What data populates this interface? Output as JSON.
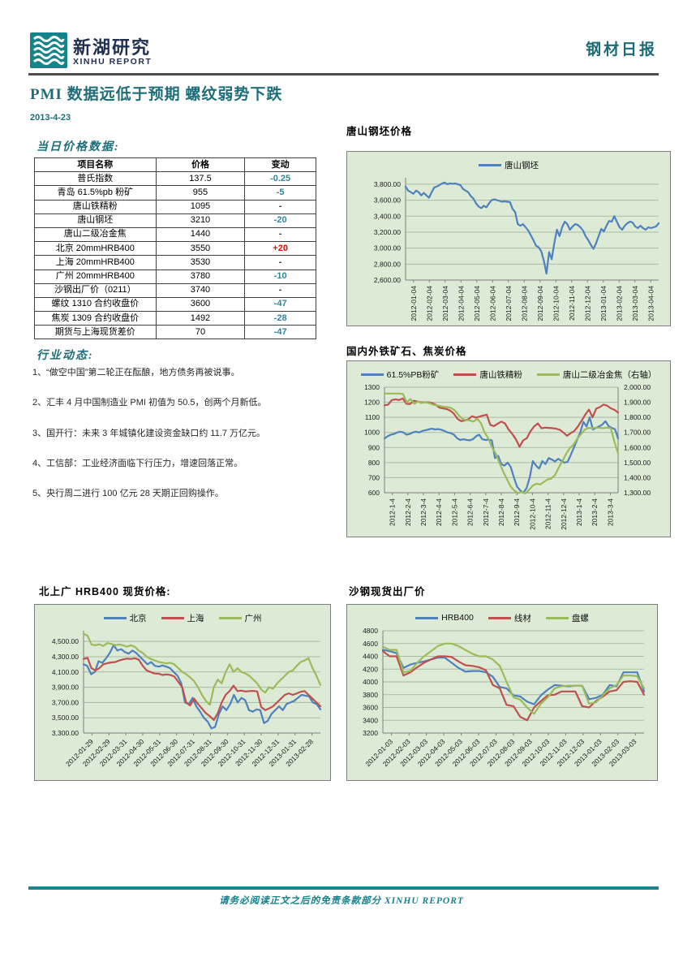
{
  "header": {
    "logo_cn": "新湖研究",
    "logo_en": "XINHU REPORT",
    "report_type": "钢材日报"
  },
  "title": "PMI 数据远低于预期 螺纹弱势下跌",
  "date": "2013-4-23",
  "colors": {
    "teal_heading": "#1D6E79",
    "footer_teal": "#1A858C",
    "header_rule": "#4D4D4D",
    "table_down": "#31849B",
    "table_up": "#FF0000",
    "series_blue": "#4F81BD",
    "series_red": "#C0504D",
    "series_green": "#9BBB59",
    "chart_bg": "#DCEAD6",
    "chart_border": "#7F7F7F",
    "gridline": "#A9BAA3"
  },
  "price_table": {
    "heading": "当日价格数据:",
    "columns": [
      "项目名称",
      "价格",
      "变动"
    ],
    "rows": [
      {
        "name": "普氏指数",
        "price": "137.5",
        "change": "-0.25",
        "dir": "down"
      },
      {
        "name": "青岛 61.5%pb 粉矿",
        "price": "955",
        "change": "-5",
        "dir": "down"
      },
      {
        "name": "唐山铁精粉",
        "price": "1095",
        "change": "-",
        "dir": "flat"
      },
      {
        "name": "唐山钢坯",
        "price": "3210",
        "change": "-20",
        "dir": "down"
      },
      {
        "name": "唐山二级冶金焦",
        "price": "1440",
        "change": "-",
        "dir": "flat"
      },
      {
        "name": "北京 20mmHRB400",
        "price": "3550",
        "change": "+20",
        "dir": "up"
      },
      {
        "name": "上海 20mmHRB400",
        "price": "3530",
        "change": "-",
        "dir": "flat"
      },
      {
        "name": "广州 20mmHRB400",
        "price": "3780",
        "change": "-10",
        "dir": "down"
      },
      {
        "name": "沙钢出厂价（0211）",
        "price": "3740",
        "change": "-",
        "dir": "flat"
      },
      {
        "name": "螺纹 1310 合约收盘价",
        "price": "3600",
        "change": "-47",
        "dir": "down"
      },
      {
        "name": "焦炭 1309 合约收盘价",
        "price": "1492",
        "change": "-28",
        "dir": "down"
      },
      {
        "name": "期货与上海现货差价",
        "price": "70",
        "change": "-47",
        "dir": "down"
      }
    ]
  },
  "news": {
    "heading": "行业动态:",
    "items": [
      "1、“做空中国”第二轮正在酝酿，地方债务再被说事。",
      "2、汇丰 4 月中国制造业 PMI 初值为 50.5，创两个月新低。",
      "3、国开行：未来 3 年城镇化建设资金缺口约 11.7 万亿元。",
      "4、工信部：工业经济面临下行压力，增速回落正常。",
      "5、央行周二进行 100 亿元 28 天期正回购操作。"
    ]
  },
  "footer": {
    "disclaimer": "请务必阅读正文之后的免责条款部分 XINHU REPORT"
  },
  "chart_data": [
    {
      "type": "line",
      "title": "唐山钢坯价格",
      "legend_position": "top",
      "ylim": [
        2600,
        3880
      ],
      "ystep": 200,
      "grid_top": 3800,
      "yfmt": "dec2",
      "xrot": 90,
      "xlabels": [
        "2012-01-04",
        "2012-02-04",
        "2012-03-04",
        "2012-04-04",
        "2012-05-04",
        "2012-06-04",
        "2012-07-04",
        "2012-08-04",
        "2012-09-04",
        "2012-10-04",
        "2012-11-04",
        "2012-12-04",
        "2013-01-04",
        "2013-02-04",
        "2013-03-04",
        "2013-04-04"
      ],
      "series": [
        {
          "name": "唐山钢坯",
          "color": "blue",
          "axis": "left",
          "values": [
            3770,
            3720,
            3700,
            3680,
            3720,
            3700,
            3660,
            3690,
            3660,
            3630,
            3700,
            3760,
            3770,
            3790,
            3810,
            3820,
            3800,
            3810,
            3805,
            3810,
            3800,
            3790,
            3740,
            3720,
            3700,
            3650,
            3620,
            3560,
            3520,
            3500,
            3530,
            3510,
            3560,
            3600,
            3610,
            3600,
            3590,
            3580,
            3585,
            3580,
            3575,
            3490,
            3450,
            3300,
            3280,
            3300,
            3260,
            3220,
            3160,
            3100,
            3030,
            3010,
            2960,
            2840,
            2680,
            2950,
            2860,
            3060,
            3230,
            3150,
            3260,
            3330,
            3300,
            3230,
            3270,
            3300,
            3290,
            3260,
            3220,
            3150,
            3100,
            3040,
            2990,
            3060,
            3150,
            3240,
            3210,
            3280,
            3340,
            3330,
            3400,
            3330,
            3260,
            3230,
            3280,
            3310,
            3330,
            3320,
            3270,
            3250,
            3280,
            3250,
            3230,
            3260,
            3250,
            3260,
            3270,
            3310
          ]
        }
      ]
    },
    {
      "type": "line",
      "title": "国内外铁矿石、焦炭价格",
      "legend_position": "top",
      "ylim": [
        600,
        1300
      ],
      "ystep": 100,
      "yfmt": "int",
      "y2lim": [
        1300,
        2000
      ],
      "y2step": 100,
      "y2fmt": "dec2",
      "xrot": 90,
      "xlabels": [
        "2012-1-4",
        "2012-2-4",
        "2012-3-4",
        "2012-4-4",
        "2012-5-4",
        "2012-6-4",
        "2012-7-4",
        "2012-8-4",
        "2012-9-4",
        "2012-10-4",
        "2012-11-4",
        "2012-12-4",
        "2013-1-4",
        "2013-2-4",
        "2013-3-4"
      ],
      "series": [
        {
          "name": "61.5%PB粉矿",
          "color": "blue",
          "axis": "left",
          "values": [
            960,
            975,
            985,
            990,
            1000,
            1005,
            1000,
            985,
            990,
            1000,
            1005,
            1000,
            1010,
            1015,
            1020,
            1025,
            1020,
            1022,
            1018,
            1010,
            1000,
            995,
            985,
            962,
            950,
            955,
            950,
            948,
            955,
            975,
            985,
            955,
            950,
            952,
            948,
            830,
            845,
            790,
            780,
            800,
            770,
            700,
            640,
            615,
            600,
            630,
            700,
            810,
            780,
            760,
            810,
            790,
            830,
            820,
            808,
            825,
            812,
            800,
            805,
            850,
            900,
            950,
            1000,
            1070,
            1040,
            1100,
            1020,
            1030,
            1040,
            1052,
            1075,
            1042,
            1030,
            1022,
            960
          ]
        },
        {
          "name": "唐山铁精粉",
          "color": "red",
          "axis": "left",
          "values": [
            1180,
            1185,
            1215,
            1220,
            1215,
            1225,
            1190,
            1188,
            1210,
            1205,
            1200,
            1200,
            1200,
            1195,
            1185,
            1165,
            1160,
            1155,
            1145,
            1125,
            1090,
            1075,
            1080,
            1088,
            1108,
            1098,
            1105,
            1112,
            1118,
            1050,
            1042,
            1058,
            1072,
            1060,
            1020,
            990,
            955,
            905,
            948,
            962,
            1008,
            1040,
            1060,
            1028,
            1032,
            1030,
            1028,
            1025,
            1018,
            1000,
            978,
            995,
            1010,
            1040,
            1078,
            1118,
            1152,
            1100,
            1158,
            1168,
            1185,
            1178,
            1160,
            1150,
            1132
          ]
        },
        {
          "name": "唐山二级冶金焦（右轴）",
          "color": "green",
          "axis": "right",
          "values": [
            1958,
            1958,
            1958,
            1958,
            1958,
            1955,
            1900,
            1922,
            1890,
            1905,
            1895,
            1900,
            1895,
            1885,
            1880,
            1875,
            1870,
            1868,
            1862,
            1845,
            1815,
            1790,
            1782,
            1780,
            1772,
            1790,
            1762,
            1700,
            1660,
            1600,
            1560,
            1500,
            1440,
            1390,
            1342,
            1315,
            1298,
            1305,
            1295,
            1320,
            1348,
            1360,
            1355,
            1372,
            1388,
            1395,
            1418,
            1468,
            1510,
            1558,
            1598,
            1620,
            1658,
            1690,
            1718,
            1730,
            1728,
            1732,
            1730,
            1728,
            1732,
            1728,
            1640,
            1560
          ]
        }
      ]
    },
    {
      "type": "line",
      "title": "北上广 HRB400 现货价格:",
      "legend_position": "top",
      "ylim": [
        3300,
        4640
      ],
      "ystep": 200,
      "grid_top": 4500,
      "yfmt": "dec2",
      "xrot": 45,
      "xlabels": [
        "2012-01-29",
        "2012-02-29",
        "2012-03-31",
        "2012-04-30",
        "2012-05-31",
        "2012-06-30",
        "2012-07-31",
        "2012-08-31",
        "2012-09-30",
        "2012-10-31",
        "2012-11-30",
        "2012-12-31",
        "2013-01-31",
        "2013-02-28"
      ],
      "series": [
        {
          "name": "北京",
          "color": "blue",
          "axis": "left",
          "values": [
            4200,
            4180,
            4070,
            4100,
            4240,
            4220,
            4280,
            4350,
            4450,
            4380,
            4400,
            4360,
            4340,
            4380,
            4350,
            4300,
            4250,
            4200,
            4230,
            4180,
            4170,
            4185,
            4170,
            4150,
            4100,
            4050,
            3950,
            3700,
            3680,
            3760,
            3650,
            3580,
            3500,
            3450,
            3360,
            3380,
            3550,
            3650,
            3600,
            3680,
            3800,
            3700,
            3760,
            3730,
            3600,
            3580,
            3610,
            3600,
            3430,
            3460,
            3550,
            3600,
            3650,
            3600,
            3680,
            3700,
            3720,
            3760,
            3800,
            3790,
            3780,
            3700,
            3680,
            3610
          ]
        },
        {
          "name": "上海",
          "color": "red",
          "axis": "left",
          "values": [
            4270,
            4285,
            4150,
            4120,
            4150,
            4200,
            4215,
            4225,
            4230,
            4250,
            4265,
            4275,
            4270,
            4280,
            4260,
            4180,
            4120,
            4100,
            4080,
            4078,
            4060,
            4068,
            4060,
            4040,
            3970,
            3900,
            3700,
            3660,
            3750,
            3680,
            3620,
            3560,
            3520,
            3470,
            3560,
            3700,
            3800,
            3850,
            3920,
            3850,
            3855,
            3845,
            3850,
            3852,
            3845,
            3640,
            3600,
            3622,
            3650,
            3700,
            3750,
            3800,
            3820,
            3800,
            3818,
            3840,
            3850,
            3800,
            3750,
            3700,
            3650
          ]
        },
        {
          "name": "广州",
          "color": "green",
          "axis": "left",
          "values": [
            4600,
            4575,
            4460,
            4450,
            4462,
            4440,
            4478,
            4468,
            4452,
            4460,
            4450,
            4432,
            4450,
            4428,
            4380,
            4350,
            4300,
            4272,
            4252,
            4232,
            4222,
            4212,
            4220,
            4200,
            4150,
            4100,
            4070,
            4030,
            3980,
            3900,
            3800,
            3720,
            3670,
            3900,
            4000,
            3950,
            4100,
            4200,
            4100,
            4148,
            4100,
            4080,
            4050,
            4000,
            3950,
            3870,
            3830,
            3900,
            3880,
            3950,
            4000,
            4050,
            4100,
            4120,
            4180,
            4230,
            4252,
            4280,
            4150,
            4050,
            3930
          ]
        }
      ]
    },
    {
      "type": "line",
      "title": "沙钢现货出厂价",
      "legend_position": "top",
      "ylim": [
        3200,
        4800
      ],
      "ystep": 200,
      "yfmt": "int",
      "xrot": 45,
      "xlabels": [
        "2012-01-03",
        "2012-02-03",
        "2012-03-03",
        "2012-04-03",
        "2012-05-03",
        "2012-06-03",
        "2012-07-03",
        "2012-08-03",
        "2012-09-03",
        "2012-10-03",
        "2012-11-03",
        "2012-12-03",
        "2013-01-03",
        "2013-02-03",
        "2013-03-03"
      ],
      "series": [
        {
          "name": "HRB400",
          "color": "blue",
          "axis": "left",
          "values": [
            4500,
            4480,
            4450,
            4220,
            4270,
            4300,
            4320,
            4350,
            4380,
            4380,
            4300,
            4220,
            4160,
            4170,
            4170,
            4150,
            4080,
            3920,
            3900,
            3790,
            3770,
            3690,
            3650,
            3790,
            3880,
            3950,
            3940,
            3930,
            3940,
            3940,
            3730,
            3750,
            3800,
            3950,
            3930,
            4150,
            4150,
            4150,
            3850
          ]
        },
        {
          "name": "线材",
          "color": "red",
          "axis": "left",
          "values": [
            4480,
            4400,
            4400,
            4100,
            4150,
            4230,
            4300,
            4350,
            4400,
            4400,
            4390,
            4320,
            4260,
            4250,
            4230,
            4180,
            3950,
            3900,
            3640,
            3620,
            3450,
            3400,
            3600,
            3700,
            3790,
            3800,
            3850,
            3850,
            3850,
            3620,
            3600,
            3700,
            3770,
            3850,
            3870,
            4000,
            4010,
            4000,
            3800
          ]
        },
        {
          "name": "盘螺",
          "color": "green",
          "axis": "left",
          "values": [
            4550,
            4500,
            4500,
            4150,
            4170,
            4300,
            4400,
            4480,
            4560,
            4600,
            4600,
            4560,
            4500,
            4440,
            4400,
            4400,
            4350,
            4250,
            4000,
            3760,
            3720,
            3600,
            3500,
            3660,
            3760,
            3900,
            3930,
            3940,
            3940,
            3940,
            3660,
            3680,
            3790,
            3900,
            3950,
            4100,
            4100,
            4090,
            3900
          ]
        }
      ]
    }
  ]
}
